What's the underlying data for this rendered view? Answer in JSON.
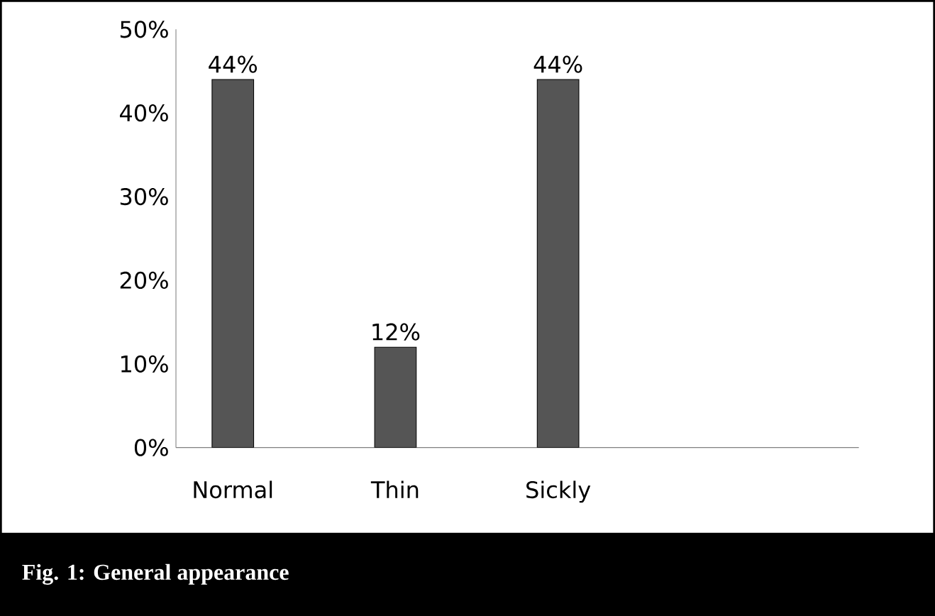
{
  "chart_data": {
    "type": "bar",
    "categories": [
      "Normal",
      "Thin",
      "Sickly"
    ],
    "values": [
      44,
      12,
      44
    ],
    "value_labels": [
      "44%",
      "12%",
      "44%"
    ],
    "color": "#555555",
    "ylim": [
      0,
      50
    ],
    "yticks": [
      {
        "value": 0,
        "label": "0%"
      },
      {
        "value": 10,
        "label": "10%"
      },
      {
        "value": 20,
        "label": "20%"
      },
      {
        "value": 30,
        "label": "30%"
      },
      {
        "value": 40,
        "label": "40%"
      },
      {
        "value": 50,
        "label": "50%"
      }
    ],
    "annotations": [
      "Fig. 1: General appearance"
    ]
  }
}
